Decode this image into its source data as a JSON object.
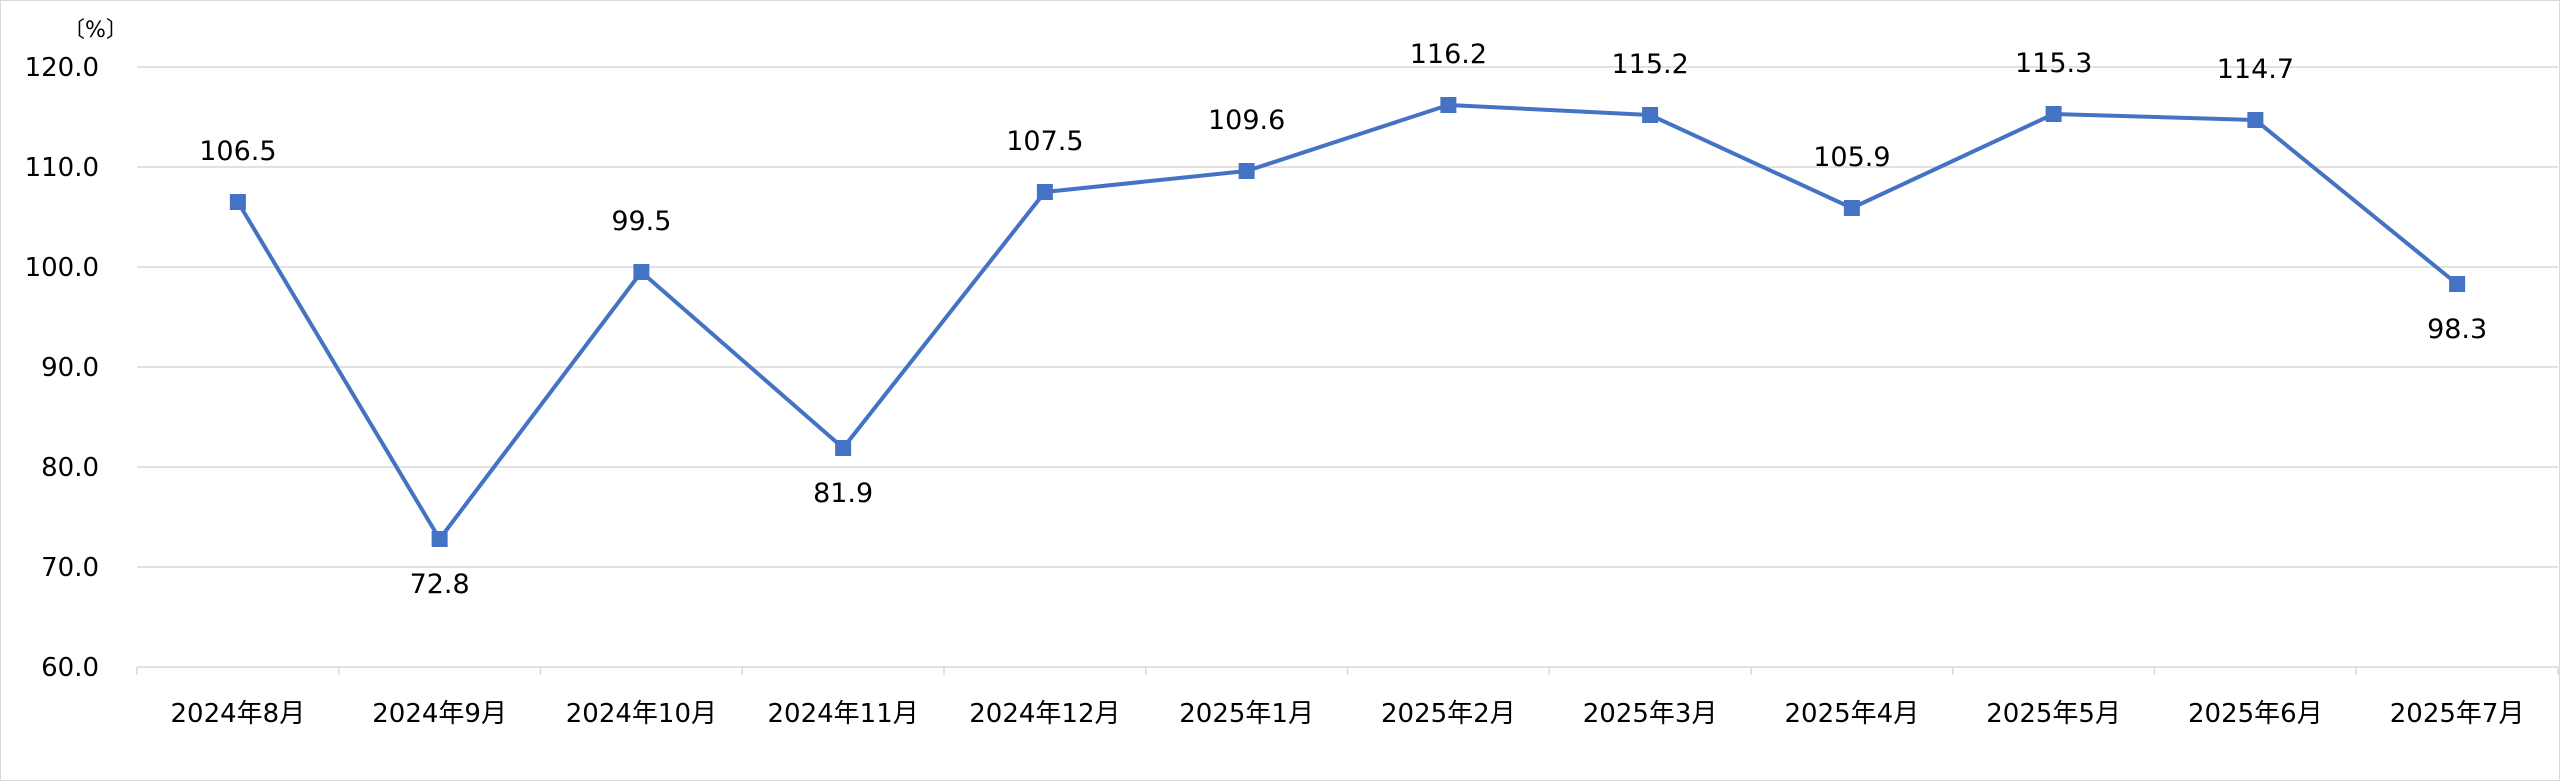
{
  "chart_data": {
    "type": "line",
    "title": "",
    "xlabel": "",
    "ylabel": "〔%〕",
    "ylim": [
      60,
      120
    ],
    "ytick_step": 10,
    "ytick_labels": [
      "60.0",
      "70.0",
      "80.0",
      "90.0",
      "100.0",
      "110.0",
      "120.0"
    ],
    "grid": true,
    "legend": "none",
    "categories": [
      "2024年8月",
      "2024年9月",
      "2024年10月",
      "2024年11月",
      "2024年12月",
      "2025年1月",
      "2025年2月",
      "2025年3月",
      "2025年4月",
      "2025年5月",
      "2025年6月",
      "2025年7月"
    ],
    "series": [
      {
        "values": [
          106.5,
          72.8,
          99.5,
          81.9,
          107.5,
          109.6,
          116.2,
          115.2,
          105.9,
          115.3,
          114.7,
          98.3
        ],
        "labels": [
          "106.5",
          "72.8",
          "99.5",
          "81.9",
          "107.5",
          "109.6",
          "116.2",
          "115.2",
          "105.9",
          "115.3",
          "114.7",
          "98.3"
        ],
        "label_positions": [
          "above",
          "below",
          "above",
          "below",
          "above",
          "above",
          "above",
          "above",
          "above",
          "above",
          "above",
          "below"
        ],
        "color": "#4472c4",
        "marker": "square"
      }
    ]
  }
}
